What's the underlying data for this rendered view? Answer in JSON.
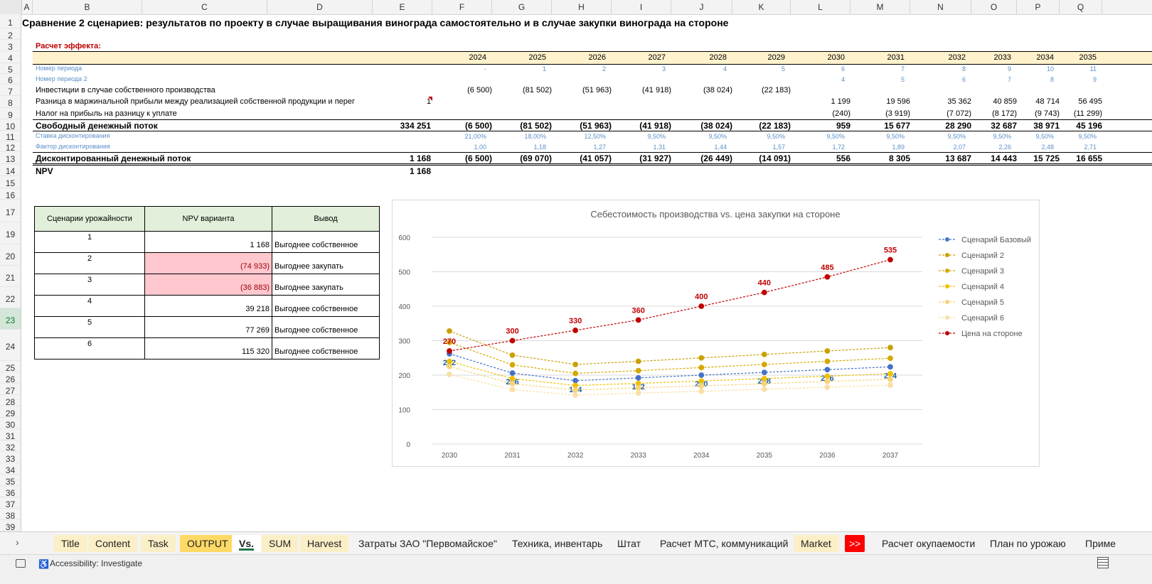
{
  "columns": [
    "A",
    "B",
    "C",
    "D",
    "E",
    "F",
    "G",
    "H",
    "I",
    "J",
    "K",
    "L",
    "M",
    "N",
    "O",
    "P",
    "Q"
  ],
  "rows": [
    "1",
    "2",
    "3",
    "4",
    "5",
    "6",
    "7",
    "8",
    "9",
    "10",
    "11",
    "12",
    "13",
    "14",
    "15",
    "16",
    "17",
    "19",
    "20",
    "21",
    "22",
    "23",
    "24",
    "25",
    "26",
    "27",
    "28",
    "29",
    "30",
    "31",
    "32",
    "33",
    "34",
    "35",
    "36",
    "37",
    "38",
    "39"
  ],
  "title": "Сравнение 2 сценариев: результатов по проекту в случае выращивания винограда самостоятельно и в случае закупки винограда на стороне",
  "section": "Расчет эффекта:",
  "years": [
    "2024",
    "2025",
    "2026",
    "2027",
    "2028",
    "2029",
    "2030",
    "2031",
    "2032",
    "2033",
    "2034",
    "2035"
  ],
  "lines": [
    {
      "label": "Номер периода",
      "style": "blue",
      "total": "",
      "vals": [
        "-",
        "1",
        "2",
        "3",
        "4",
        "5",
        "6",
        "7",
        "8",
        "9",
        "10",
        "11"
      ]
    },
    {
      "label": "Номер периода 2",
      "style": "blue",
      "total": "",
      "vals": [
        "",
        "",
        "",
        "",
        "",
        "",
        "4",
        "5",
        "6",
        "7",
        "8",
        "9"
      ]
    },
    {
      "label": "Инвестиции в случае собственного производства",
      "style": "normal",
      "total": "",
      "vals": [
        "(6 500)",
        "(81 502)",
        "(51 963)",
        "(41 918)",
        "(38 024)",
        "(22 183)",
        "",
        "",
        "",
        "",
        "",
        ""
      ]
    },
    {
      "label": "Разница в маржинальной прибыли между реализацией собственной продукции и перег",
      "style": "normal",
      "total": "1",
      "vals": [
        "",
        "",
        "",
        "",
        "",
        "",
        "1 199",
        "19 596",
        "35 362",
        "40 859",
        "48 714",
        "56 495"
      ]
    },
    {
      "label": "Налог на прибыль на разницу к уплате",
      "style": "normal",
      "total": "",
      "vals": [
        "",
        "",
        "",
        "",
        "",
        "",
        "(240)",
        "(3 919)",
        "(7 072)",
        "(8 172)",
        "(9 743)",
        "(11 299)"
      ]
    },
    {
      "label": "Свободный денежный поток",
      "style": "bold",
      "total": "334 251",
      "vals": [
        "(6 500)",
        "(81 502)",
        "(51 963)",
        "(41 918)",
        "(38 024)",
        "(22 183)",
        "959",
        "15 677",
        "28 290",
        "32 687",
        "38 971",
        "45 196"
      ]
    },
    {
      "label": "Ставка дисконтирования",
      "style": "blue",
      "total": "",
      "vals": [
        "21,00%",
        "18,00%",
        "12,50%",
        "9,50%",
        "9,50%",
        "9,50%",
        "9,50%",
        "9,50%",
        "9,50%",
        "9,50%",
        "9,50%",
        "9,50%"
      ]
    },
    {
      "label": "Фактор дисконтирования",
      "style": "blue",
      "total": "",
      "vals": [
        "1,00",
        "1,18",
        "1,27",
        "1,31",
        "1,44",
        "1,57",
        "1,72",
        "1,89",
        "2,07",
        "2,26",
        "2,48",
        "2,71"
      ]
    },
    {
      "label": "Дисконтированный денежный поток",
      "style": "bold",
      "total": "1 168",
      "vals": [
        "(6 500)",
        "(69 070)",
        "(41 057)",
        "(31 927)",
        "(26 449)",
        "(14 091)",
        "556",
        "8 305",
        "13 687",
        "14 443",
        "15 725",
        "16 655"
      ]
    }
  ],
  "npv": {
    "label": "NPV",
    "value": "1 168"
  },
  "scenario_table": {
    "headers": [
      "Сценарии урожайности",
      "NPV варианта",
      "Вывод"
    ],
    "rows": [
      {
        "n": "1",
        "npv": "1 168",
        "out": "Выгоднее собственное",
        "neg": false
      },
      {
        "n": "2",
        "npv": "(74 933)",
        "out": "Выгоднее закупать",
        "neg": true
      },
      {
        "n": "3",
        "npv": "(36 883)",
        "out": "Выгоднее закупать",
        "neg": true
      },
      {
        "n": "4",
        "npv": "39 218",
        "out": "Выгоднее собственное",
        "neg": false
      },
      {
        "n": "5",
        "npv": "77 269",
        "out": "Выгоднее собственное",
        "neg": false
      },
      {
        "n": "6",
        "npv": "115 320",
        "out": "Выгоднее собственное",
        "neg": false
      }
    ]
  },
  "chart_data": {
    "type": "line",
    "title": "Себестоимость производства vs. цена закупки на стороне",
    "x": [
      "2030",
      "2031",
      "2032",
      "2033",
      "2034",
      "2035",
      "2036",
      "2037"
    ],
    "ylim": [
      0,
      600
    ],
    "yticks": [
      "0",
      "100",
      "200",
      "300",
      "400",
      "500",
      "600"
    ],
    "legend_position": "right",
    "series": [
      {
        "name": "Сценарий Базовый",
        "color": "#4472c4",
        "values": [
          262,
          206,
          184,
          192,
          200,
          208,
          216,
          224
        ],
        "labels": true,
        "label_color": "#1f5fa0"
      },
      {
        "name": "Сценарий 2",
        "color": "#c9a000",
        "values": [
          328,
          258,
          231,
          240,
          250,
          260,
          270,
          280
        ],
        "labels": false
      },
      {
        "name": "Сценарий 3",
        "color": "#d4a800",
        "values": [
          295,
          230,
          205,
          213,
          222,
          231,
          240,
          249
        ],
        "labels": false
      },
      {
        "name": "Сценарий 4",
        "color": "#f0c000",
        "values": [
          240,
          190,
          170,
          176,
          183,
          190,
          197,
          204
        ],
        "labels": false
      },
      {
        "name": "Сценарий 5",
        "color": "#f7d478",
        "values": [
          225,
          175,
          157,
          163,
          169,
          175,
          182,
          188
        ],
        "labels": false
      },
      {
        "name": "Сценарий 6",
        "color": "#f9dfa6",
        "values": [
          202,
          158,
          142,
          148,
          153,
          159,
          165,
          171
        ],
        "labels": false
      },
      {
        "name": "Цена на стороне",
        "color": "#c00000",
        "values": [
          270,
          300,
          330,
          360,
          400,
          440,
          485,
          535
        ],
        "labels": true,
        "label_color": "#c00000"
      }
    ]
  },
  "sheet_tabs": [
    {
      "label": "Title",
      "active": false,
      "bg": "#fbefc7"
    },
    {
      "label": "Content",
      "active": false,
      "bg": "#fbefc7"
    },
    {
      "label": "Task",
      "active": false,
      "bg": "#fbefc7"
    },
    {
      "label": "OUTPUT",
      "active": false,
      "bg": "#ffd966"
    },
    {
      "label": "Vs.",
      "active": true,
      "bg": "#ffffff"
    },
    {
      "label": "SUM",
      "active": false,
      "bg": "#fbefc7"
    },
    {
      "label": "Harvest",
      "active": false,
      "bg": "#fbefc7"
    },
    {
      "label": "Затраты ЗАО \"Первомайское\"",
      "active": false,
      "bg": ""
    },
    {
      "label": "Техника, инвентарь",
      "active": false,
      "bg": ""
    },
    {
      "label": "Штат",
      "active": false,
      "bg": ""
    },
    {
      "label": "Расчет МТС, коммуникаций",
      "active": false,
      "bg": ""
    },
    {
      "label": "Market",
      "active": false,
      "bg": "#fbefc7"
    },
    {
      "label": ">>",
      "active": false,
      "bg": "#ff0000"
    },
    {
      "label": "Расчет окупаемости",
      "active": false,
      "bg": ""
    },
    {
      "label": "План по урожаю",
      "active": false,
      "bg": ""
    },
    {
      "label": "Приме",
      "active": false,
      "bg": ""
    }
  ],
  "status": {
    "accessibility": "Accessibility: Investigate"
  }
}
